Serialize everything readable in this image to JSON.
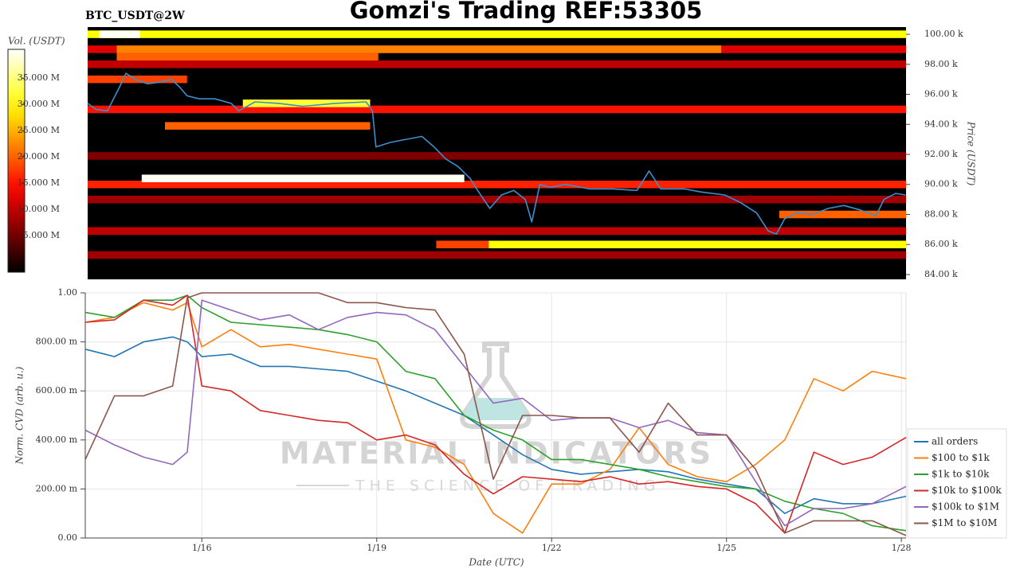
{
  "title": "Gomzi's Trading REF:53305",
  "watermark": {
    "title": "MATERIAL INDICATORS",
    "subtitle": "THE SCIENCE OF TRADING"
  },
  "chart_data": [
    {
      "type": "heatmap",
      "title": "BTC_USDT@2W",
      "background": "#000000",
      "colormap": "hot",
      "xlim": [
        14.0,
        28.08
      ],
      "ylim": [
        83680,
        100480
      ],
      "ylabel": "Price (USDT)",
      "yticks": [
        {
          "value": 84000,
          "label": "84.00 k"
        },
        {
          "value": 86000,
          "label": "86.00 k"
        },
        {
          "value": 88000,
          "label": "88.00 k"
        },
        {
          "value": 90000,
          "label": "90.00 k"
        },
        {
          "value": 92000,
          "label": "92.00 k"
        },
        {
          "value": 94000,
          "label": "94.00 k"
        },
        {
          "value": 96000,
          "label": "96.00 k"
        },
        {
          "value": 98000,
          "label": "98.00 k"
        },
        {
          "value": 100000,
          "label": "100.00 k"
        }
      ],
      "colorbar": {
        "label": "Vol. (USDT)",
        "zlim": [
          -2000000,
          40500000
        ],
        "ticks": [
          {
            "value": 5000000,
            "label": "5.000 M"
          },
          {
            "value": 10000000,
            "label": "10.000 M"
          },
          {
            "value": 15000000,
            "label": "15.000 M"
          },
          {
            "value": 20000000,
            "label": "20.000 M"
          },
          {
            "value": 25000000,
            "label": "25.000 M"
          },
          {
            "value": 30000000,
            "label": "30.000 M"
          },
          {
            "value": 35000000,
            "label": "35.000 M"
          }
        ]
      },
      "walls": [
        {
          "price": 100000,
          "start": 14.0,
          "end": 28.08,
          "volume": 30000000
        },
        {
          "price": 100000,
          "start": 14.2,
          "end": 14.9,
          "volume": 40000000
        },
        {
          "price": 99000,
          "start": 14.0,
          "end": 28.08,
          "volume": 12000000
        },
        {
          "price": 99000,
          "start": 14.5,
          "end": 24.9,
          "volume": 22000000
        },
        {
          "price": 98500,
          "start": 14.5,
          "end": 19.0,
          "volume": 20000000
        },
        {
          "price": 98000,
          "start": 14.0,
          "end": 28.08,
          "volume": 10000000
        },
        {
          "price": 97000,
          "start": 14.0,
          "end": 15.71,
          "volume": 18000000
        },
        {
          "price": 95000,
          "start": 14.0,
          "end": 28.08,
          "volume": 15000000
        },
        {
          "price": 95400,
          "start": 16.67,
          "end": 18.86,
          "volume": 32000000
        },
        {
          "price": 93900,
          "start": 15.33,
          "end": 18.86,
          "volume": 20000000
        },
        {
          "price": 91900,
          "start": 14.0,
          "end": 28.08,
          "volume": 6000000
        },
        {
          "price": 90000,
          "start": 14.0,
          "end": 28.08,
          "volume": 16000000
        },
        {
          "price": 90400,
          "start": 14.93,
          "end": 20.48,
          "volume": 40000000
        },
        {
          "price": 89000,
          "start": 14.0,
          "end": 28.08,
          "volume": 8000000
        },
        {
          "price": 88000,
          "start": 25.9,
          "end": 28.08,
          "volume": 20000000
        },
        {
          "price": 86900,
          "start": 14.0,
          "end": 28.08,
          "volume": 10000000
        },
        {
          "price": 86000,
          "start": 20.0,
          "end": 28.08,
          "volume": 30000000
        },
        {
          "price": 86000,
          "start": 20.0,
          "end": 20.9,
          "volume": 18000000
        },
        {
          "price": 85300,
          "start": 14.0,
          "end": 28.08,
          "volume": 8000000
        }
      ],
      "x": [
        14.0,
        14.14,
        14.34,
        14.55,
        14.66,
        14.82,
        15.03,
        15.23,
        15.44,
        15.58,
        15.71,
        15.92,
        16.19,
        16.47,
        16.6,
        16.88,
        17.29,
        17.7,
        18.25,
        18.79,
        18.9,
        18.96,
        19.21,
        19.48,
        19.75,
        19.96,
        20.16,
        20.37,
        20.58,
        20.71,
        20.92,
        21.12,
        21.33,
        21.53,
        21.64,
        21.78,
        21.95,
        22.22,
        22.63,
        23.04,
        23.45,
        23.66,
        23.86,
        24.27,
        24.55,
        24.96,
        25.23,
        25.51,
        25.71,
        25.85,
        25.99,
        26.19,
        26.47,
        26.74,
        27.01,
        27.29,
        27.56,
        27.7,
        27.9,
        28.07
      ],
      "series": [
        {
          "color": "#3a8fd0",
          "values": [
            95400,
            95000,
            94900,
            96500,
            97400,
            97000,
            96700,
            96800,
            97000,
            96500,
            95900,
            95700,
            95700,
            95400,
            94900,
            95500,
            95400,
            95200,
            95400,
            95500,
            94900,
            92500,
            92800,
            93000,
            93200,
            92500,
            91700,
            91200,
            90400,
            89600,
            88400,
            89300,
            89600,
            89000,
            87500,
            90000,
            89800,
            90000,
            89700,
            89700,
            89600,
            90900,
            89700,
            89700,
            89500,
            89300,
            88800,
            88100,
            86900,
            86700,
            87700,
            88100,
            88000,
            88400,
            88600,
            88300,
            87900,
            89000,
            89400,
            89300
          ]
        }
      ]
    },
    {
      "type": "line",
      "xlabel": "Date (UTC)",
      "ylabel": "Norm. CVD (arb. u.)",
      "grid": true,
      "legend": "lower right",
      "xlim": [
        14.0,
        28.08
      ],
      "xticks": [
        {
          "value": 16,
          "label": "1/16"
        },
        {
          "value": 19,
          "label": "1/19"
        },
        {
          "value": 22,
          "label": "1/22"
        },
        {
          "value": 25,
          "label": "1/25"
        },
        {
          "value": 28,
          "label": "1/28"
        }
      ],
      "ylim": [
        0,
        1
      ],
      "yticks": [
        {
          "value": 0,
          "label": "0.00"
        },
        {
          "value": 0.2,
          "label": "200.00 m"
        },
        {
          "value": 0.4,
          "label": "400.00 m"
        },
        {
          "value": 0.6,
          "label": "600.00 m"
        },
        {
          "value": 0.8,
          "label": "800.00 m"
        },
        {
          "value": 1,
          "label": "1.00"
        }
      ],
      "x": [
        14.0,
        14.5,
        15.0,
        15.5,
        15.75,
        16.0,
        16.5,
        17.0,
        17.5,
        18.0,
        18.5,
        19.0,
        19.5,
        20.0,
        20.5,
        21.0,
        21.5,
        22.0,
        22.5,
        23.0,
        23.5,
        24.0,
        24.5,
        25.0,
        25.5,
        26.0,
        26.5,
        27.0,
        27.5,
        28.08
      ],
      "series": [
        {
          "name": "all orders",
          "color": "#1f77b4",
          "values": [
            0.77,
            0.74,
            0.8,
            0.82,
            0.8,
            0.74,
            0.75,
            0.7,
            0.7,
            0.69,
            0.68,
            0.64,
            0.6,
            0.55,
            0.5,
            0.42,
            0.34,
            0.28,
            0.26,
            0.27,
            0.28,
            0.27,
            0.24,
            0.22,
            0.2,
            0.1,
            0.16,
            0.14,
            0.14,
            0.17
          ]
        },
        {
          "name": "$100 to $1k",
          "color": "#ff7f0e",
          "values": [
            0.88,
            0.9,
            0.96,
            0.93,
            0.96,
            0.78,
            0.85,
            0.78,
            0.79,
            0.77,
            0.75,
            0.73,
            0.4,
            0.37,
            0.3,
            0.1,
            0.02,
            0.22,
            0.22,
            0.28,
            0.45,
            0.3,
            0.25,
            0.23,
            0.3,
            0.4,
            0.65,
            0.6,
            0.68,
            0.65
          ]
        },
        {
          "name": "$1k to $10k",
          "color": "#2ca02c",
          "values": [
            0.92,
            0.9,
            0.97,
            0.97,
            0.99,
            0.94,
            0.88,
            0.87,
            0.86,
            0.85,
            0.83,
            0.8,
            0.68,
            0.65,
            0.5,
            0.44,
            0.4,
            0.32,
            0.32,
            0.3,
            0.28,
            0.25,
            0.23,
            0.21,
            0.2,
            0.15,
            0.12,
            0.1,
            0.05,
            0.03
          ]
        },
        {
          "name": "$10k to $100k",
          "color": "#d62728",
          "values": [
            0.88,
            0.89,
            0.97,
            0.95,
            0.99,
            0.62,
            0.6,
            0.52,
            0.5,
            0.48,
            0.47,
            0.4,
            0.42,
            0.38,
            0.26,
            0.18,
            0.25,
            0.24,
            0.23,
            0.25,
            0.22,
            0.23,
            0.21,
            0.2,
            0.14,
            0.02,
            0.35,
            0.3,
            0.33,
            0.41
          ]
        },
        {
          "name": "$100k to $1M",
          "color": "#9467bd",
          "values": [
            0.44,
            0.38,
            0.33,
            0.3,
            0.35,
            0.97,
            0.93,
            0.89,
            0.91,
            0.85,
            0.9,
            0.92,
            0.91,
            0.85,
            0.7,
            0.55,
            0.57,
            0.48,
            0.49,
            0.49,
            0.45,
            0.48,
            0.43,
            0.42,
            0.23,
            0.05,
            0.12,
            0.12,
            0.14,
            0.21
          ]
        },
        {
          "name": "$1M to $10M",
          "color": "#8c564b",
          "values": [
            0.32,
            0.58,
            0.58,
            0.62,
            0.98,
            1.0,
            1.0,
            1.0,
            1.0,
            1.0,
            0.96,
            0.96,
            0.94,
            0.93,
            0.75,
            0.24,
            0.5,
            0.5,
            0.49,
            0.49,
            0.35,
            0.55,
            0.42,
            0.42,
            0.28,
            0.02,
            0.07,
            0.07,
            0.07,
            0.01
          ]
        }
      ]
    }
  ]
}
